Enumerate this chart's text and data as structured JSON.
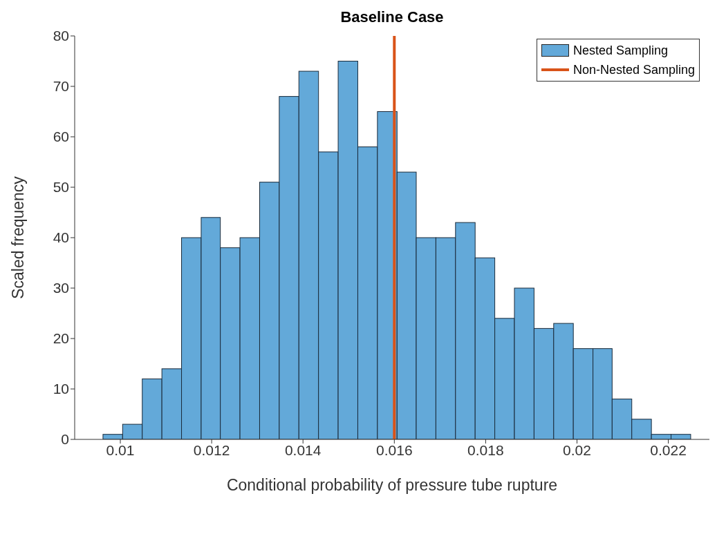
{
  "chart_data": {
    "type": "histogram",
    "title": "Baseline Case",
    "xlabel": "Conditional probability of pressure tube rupture",
    "ylabel": "Scaled frequency",
    "bins": [
      0.00962,
      0.01005,
      0.01048,
      0.01091,
      0.01134,
      0.01177,
      0.01219,
      0.01262,
      0.01305,
      0.01348,
      0.01391,
      0.01434,
      0.01477,
      0.0152,
      0.01563,
      0.01606,
      0.01648,
      0.01691,
      0.01734,
      0.01777,
      0.0182,
      0.01863,
      0.01906,
      0.01949,
      0.01992,
      0.02035,
      0.02077,
      0.0212,
      0.02163,
      0.02206,
      0.02249
    ],
    "series": [
      {
        "name": "Nested Sampling",
        "color": "#63a9d9",
        "values": [
          1,
          3,
          12,
          14,
          40,
          44,
          38,
          40,
          51,
          68,
          73,
          57,
          75,
          58,
          65,
          53,
          40,
          40,
          43,
          36,
          24,
          30,
          22,
          23,
          18,
          18,
          8,
          4,
          1,
          1
        ]
      },
      {
        "type": "line",
        "name": "Non-Nested Sampling",
        "color": "#d95319",
        "x": [
          0.016,
          0.016
        ],
        "values": [
          0,
          80
        ]
      }
    ],
    "xlim": [
      0.009,
      0.0229
    ],
    "xticks": [
      0.01,
      0.012,
      0.014,
      0.016,
      0.018,
      0.02,
      0.022
    ],
    "ylim": [
      0,
      80
    ],
    "yticks": [
      0,
      10,
      20,
      30,
      40,
      50,
      60,
      70,
      80
    ],
    "grid": false,
    "legend": "top right"
  }
}
